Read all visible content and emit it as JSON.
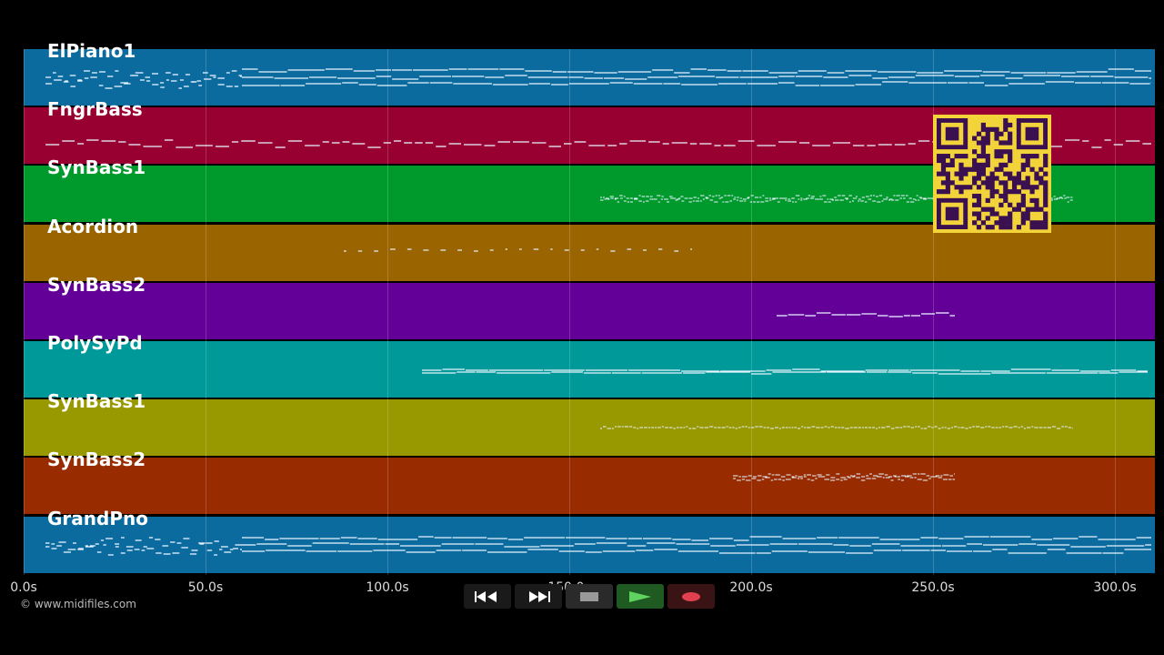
{
  "tracks": [
    {
      "name": "ElPiano1",
      "color": "#0b6a9e"
    },
    {
      "name": "FngrBass",
      "color": "#980031"
    },
    {
      "name": "SynBass1",
      "color": "#009a2c"
    },
    {
      "name": "Acordion",
      "color": "#9a6400"
    },
    {
      "name": "SynBass2",
      "color": "#620098"
    },
    {
      "name": "PolySyPd",
      "color": "#00999a"
    },
    {
      "name": "SynBass1",
      "color": "#989800"
    },
    {
      "name": "SynBass2",
      "color": "#982c00"
    },
    {
      "name": "GrandPno",
      "color": "#0b6a9e"
    }
  ],
  "timeline": {
    "ticks": [
      "0.0s",
      "50.0s",
      "100.0s",
      "150.0s",
      "200.0s",
      "250.0s",
      "300.0s"
    ],
    "tick_values": [
      0,
      50,
      100,
      150,
      200,
      250,
      300
    ],
    "max_seconds": 311
  },
  "copyright": "© www.midifiles.com",
  "transport": {
    "rewind": "rewind-icon",
    "fast_forward": "fast-forward-icon",
    "stop": "stop-icon",
    "play": "play-icon",
    "record": "record-icon"
  },
  "qr_code": "qr-code"
}
